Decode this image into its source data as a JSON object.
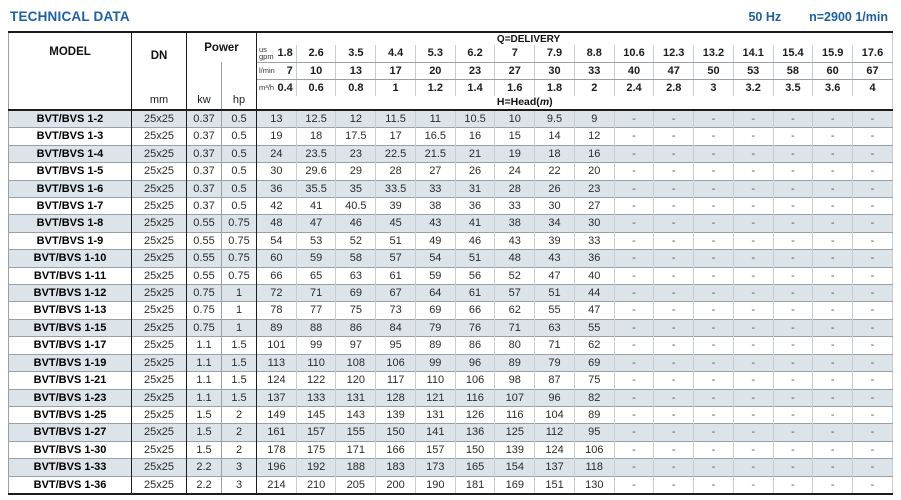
{
  "header": {
    "title": "TECHNICAL DATA",
    "frequency": "50 Hz",
    "speed": "n=2900 1/min"
  },
  "table": {
    "column_headers": {
      "model": "MODEL",
      "dn": "DN",
      "dn_unit": "mm",
      "power": "Power",
      "kw": "kw",
      "hp": "hp",
      "q_delivery": "Q=DELIVERY",
      "h_head_prefix": "H=Head(",
      "h_head_unit": "m",
      "h_head_suffix": ")",
      "us_gpm_label": "us\ngpm",
      "l_min_label": "l/min",
      "m3_h_label": "m³/h"
    },
    "delivery_us_gpm": [
      "1.8",
      "2.6",
      "3.5",
      "4.4",
      "5.3",
      "6.2",
      "7",
      "7.9",
      "8.8",
      "10.6",
      "12.3",
      "13.2",
      "14.1",
      "15.4",
      "15.9",
      "17.6"
    ],
    "delivery_l_min": [
      "7",
      "10",
      "13",
      "17",
      "20",
      "23",
      "27",
      "30",
      "33",
      "40",
      "47",
      "50",
      "53",
      "58",
      "60",
      "67"
    ],
    "delivery_m3_h": [
      "0.4",
      "0.6",
      "0.8",
      "1",
      "1.2",
      "1.4",
      "1.6",
      "1.8",
      "2",
      "2.4",
      "2.8",
      "3",
      "3.2",
      "3.5",
      "3.6",
      "4"
    ],
    "rows": [
      {
        "model": "BVT/BVS 1-2",
        "dn": "25x25",
        "kw": "0.37",
        "hp": "0.5",
        "head": [
          "13",
          "12.5",
          "12",
          "11.5",
          "11",
          "10.5",
          "10",
          "9.5",
          "9",
          "-",
          "-",
          "-",
          "-",
          "-",
          "-",
          "-"
        ]
      },
      {
        "model": "BVT/BVS 1-3",
        "dn": "25x25",
        "kw": "0.37",
        "hp": "0.5",
        "head": [
          "19",
          "18",
          "17.5",
          "17",
          "16.5",
          "16",
          "15",
          "14",
          "12",
          "-",
          "-",
          "-",
          "-",
          "-",
          "-",
          "-"
        ]
      },
      {
        "model": "BVT/BVS 1-4",
        "dn": "25x25",
        "kw": "0.37",
        "hp": "0.5",
        "head": [
          "24",
          "23.5",
          "23",
          "22.5",
          "21.5",
          "21",
          "19",
          "18",
          "16",
          "-",
          "-",
          "-",
          "-",
          "-",
          "-",
          "-"
        ]
      },
      {
        "model": "BVT/BVS 1-5",
        "dn": "25x25",
        "kw": "0.37",
        "hp": "0.5",
        "head": [
          "30",
          "29.6",
          "29",
          "28",
          "27",
          "26",
          "24",
          "22",
          "20",
          "-",
          "-",
          "-",
          "-",
          "-",
          "-",
          "-"
        ]
      },
      {
        "model": "BVT/BVS 1-6",
        "dn": "25x25",
        "kw": "0.37",
        "hp": "0.5",
        "head": [
          "36",
          "35.5",
          "35",
          "33.5",
          "33",
          "31",
          "28",
          "26",
          "23",
          "-",
          "-",
          "-",
          "-",
          "-",
          "-",
          "-"
        ]
      },
      {
        "model": "BVT/BVS 1-7",
        "dn": "25x25",
        "kw": "0.37",
        "hp": "0.5",
        "head": [
          "42",
          "41",
          "40.5",
          "39",
          "38",
          "36",
          "33",
          "30",
          "27",
          "-",
          "-",
          "-",
          "-",
          "-",
          "-",
          "-"
        ]
      },
      {
        "model": "BVT/BVS 1-8",
        "dn": "25x25",
        "kw": "0.55",
        "hp": "0.75",
        "head": [
          "48",
          "47",
          "46",
          "45",
          "43",
          "41",
          "38",
          "34",
          "30",
          "-",
          "-",
          "-",
          "-",
          "-",
          "-",
          "-"
        ]
      },
      {
        "model": "BVT/BVS 1-9",
        "dn": "25x25",
        "kw": "0.55",
        "hp": "0.75",
        "head": [
          "54",
          "53",
          "52",
          "51",
          "49",
          "46",
          "43",
          "39",
          "33",
          "-",
          "-",
          "-",
          "-",
          "-",
          "-",
          "-"
        ]
      },
      {
        "model": "BVT/BVS 1-10",
        "dn": "25x25",
        "kw": "0.55",
        "hp": "0.75",
        "head": [
          "60",
          "59",
          "58",
          "57",
          "54",
          "51",
          "48",
          "43",
          "36",
          "-",
          "-",
          "-",
          "-",
          "-",
          "-",
          "-"
        ]
      },
      {
        "model": "BVT/BVS 1-11",
        "dn": "25x25",
        "kw": "0.55",
        "hp": "0.75",
        "head": [
          "66",
          "65",
          "63",
          "61",
          "59",
          "56",
          "52",
          "47",
          "40",
          "-",
          "-",
          "-",
          "-",
          "-",
          "-",
          "-"
        ]
      },
      {
        "model": "BVT/BVS 1-12",
        "dn": "25x25",
        "kw": "0.75",
        "hp": "1",
        "head": [
          "72",
          "71",
          "69",
          "67",
          "64",
          "61",
          "57",
          "51",
          "44",
          "-",
          "-",
          "-",
          "-",
          "-",
          "-",
          "-"
        ]
      },
      {
        "model": "BVT/BVS 1-13",
        "dn": "25x25",
        "kw": "0.75",
        "hp": "1",
        "head": [
          "78",
          "77",
          "75",
          "73",
          "69",
          "66",
          "62",
          "55",
          "47",
          "-",
          "-",
          "-",
          "-",
          "-",
          "-",
          "-"
        ]
      },
      {
        "model": "BVT/BVS 1-15",
        "dn": "25x25",
        "kw": "0.75",
        "hp": "1",
        "head": [
          "89",
          "88",
          "86",
          "84",
          "79",
          "76",
          "71",
          "63",
          "55",
          "-",
          "-",
          "-",
          "-",
          "-",
          "-",
          "-"
        ]
      },
      {
        "model": "BVT/BVS 1-17",
        "dn": "25x25",
        "kw": "1.1",
        "hp": "1.5",
        "head": [
          "101",
          "99",
          "97",
          "95",
          "89",
          "86",
          "80",
          "71",
          "62",
          "-",
          "-",
          "-",
          "-",
          "-",
          "-",
          "-"
        ]
      },
      {
        "model": "BVT/BVS 1-19",
        "dn": "25x25",
        "kw": "1.1",
        "hp": "1.5",
        "head": [
          "113",
          "110",
          "108",
          "106",
          "99",
          "96",
          "89",
          "79",
          "69",
          "-",
          "-",
          "-",
          "-",
          "-",
          "-",
          "-"
        ]
      },
      {
        "model": "BVT/BVS 1-21",
        "dn": "25x25",
        "kw": "1.1",
        "hp": "1.5",
        "head": [
          "124",
          "122",
          "120",
          "117",
          "110",
          "106",
          "98",
          "87",
          "75",
          "-",
          "-",
          "-",
          "-",
          "-",
          "-",
          "-"
        ]
      },
      {
        "model": "BVT/BVS 1-23",
        "dn": "25x25",
        "kw": "1.1",
        "hp": "1.5",
        "head": [
          "137",
          "133",
          "131",
          "128",
          "121",
          "116",
          "107",
          "96",
          "82",
          "-",
          "-",
          "-",
          "-",
          "-",
          "-",
          "-"
        ]
      },
      {
        "model": "BVT/BVS 1-25",
        "dn": "25x25",
        "kw": "1.5",
        "hp": "2",
        "head": [
          "149",
          "145",
          "143",
          "139",
          "131",
          "126",
          "116",
          "104",
          "89",
          "-",
          "-",
          "-",
          "-",
          "-",
          "-",
          "-"
        ]
      },
      {
        "model": "BVT/BVS 1-27",
        "dn": "25x25",
        "kw": "1.5",
        "hp": "2",
        "head": [
          "161",
          "157",
          "155",
          "150",
          "141",
          "136",
          "125",
          "112",
          "95",
          "-",
          "-",
          "-",
          "-",
          "-",
          "-",
          "-"
        ]
      },
      {
        "model": "BVT/BVS 1-30",
        "dn": "25x25",
        "kw": "1.5",
        "hp": "2",
        "head": [
          "178",
          "175",
          "171",
          "166",
          "157",
          "150",
          "139",
          "124",
          "106",
          "-",
          "-",
          "-",
          "-",
          "-",
          "-",
          "-"
        ]
      },
      {
        "model": "BVT/BVS 1-33",
        "dn": "25x25",
        "kw": "2.2",
        "hp": "3",
        "head": [
          "196",
          "192",
          "188",
          "183",
          "173",
          "165",
          "154",
          "137",
          "118",
          "-",
          "-",
          "-",
          "-",
          "-",
          "-",
          "-"
        ]
      },
      {
        "model": "BVT/BVS 1-36",
        "dn": "25x25",
        "kw": "2.2",
        "hp": "3",
        "head": [
          "214",
          "210",
          "205",
          "200",
          "190",
          "181",
          "169",
          "151",
          "130",
          "-",
          "-",
          "-",
          "-",
          "-",
          "-",
          "-"
        ]
      }
    ]
  },
  "colors": {
    "accent_blue": "#1d5fa6",
    "stripe": "#dce3e9",
    "border_heavy": "#1c1c1c",
    "row_line": "#99a0a7",
    "col_line": "#c6ccd2"
  }
}
